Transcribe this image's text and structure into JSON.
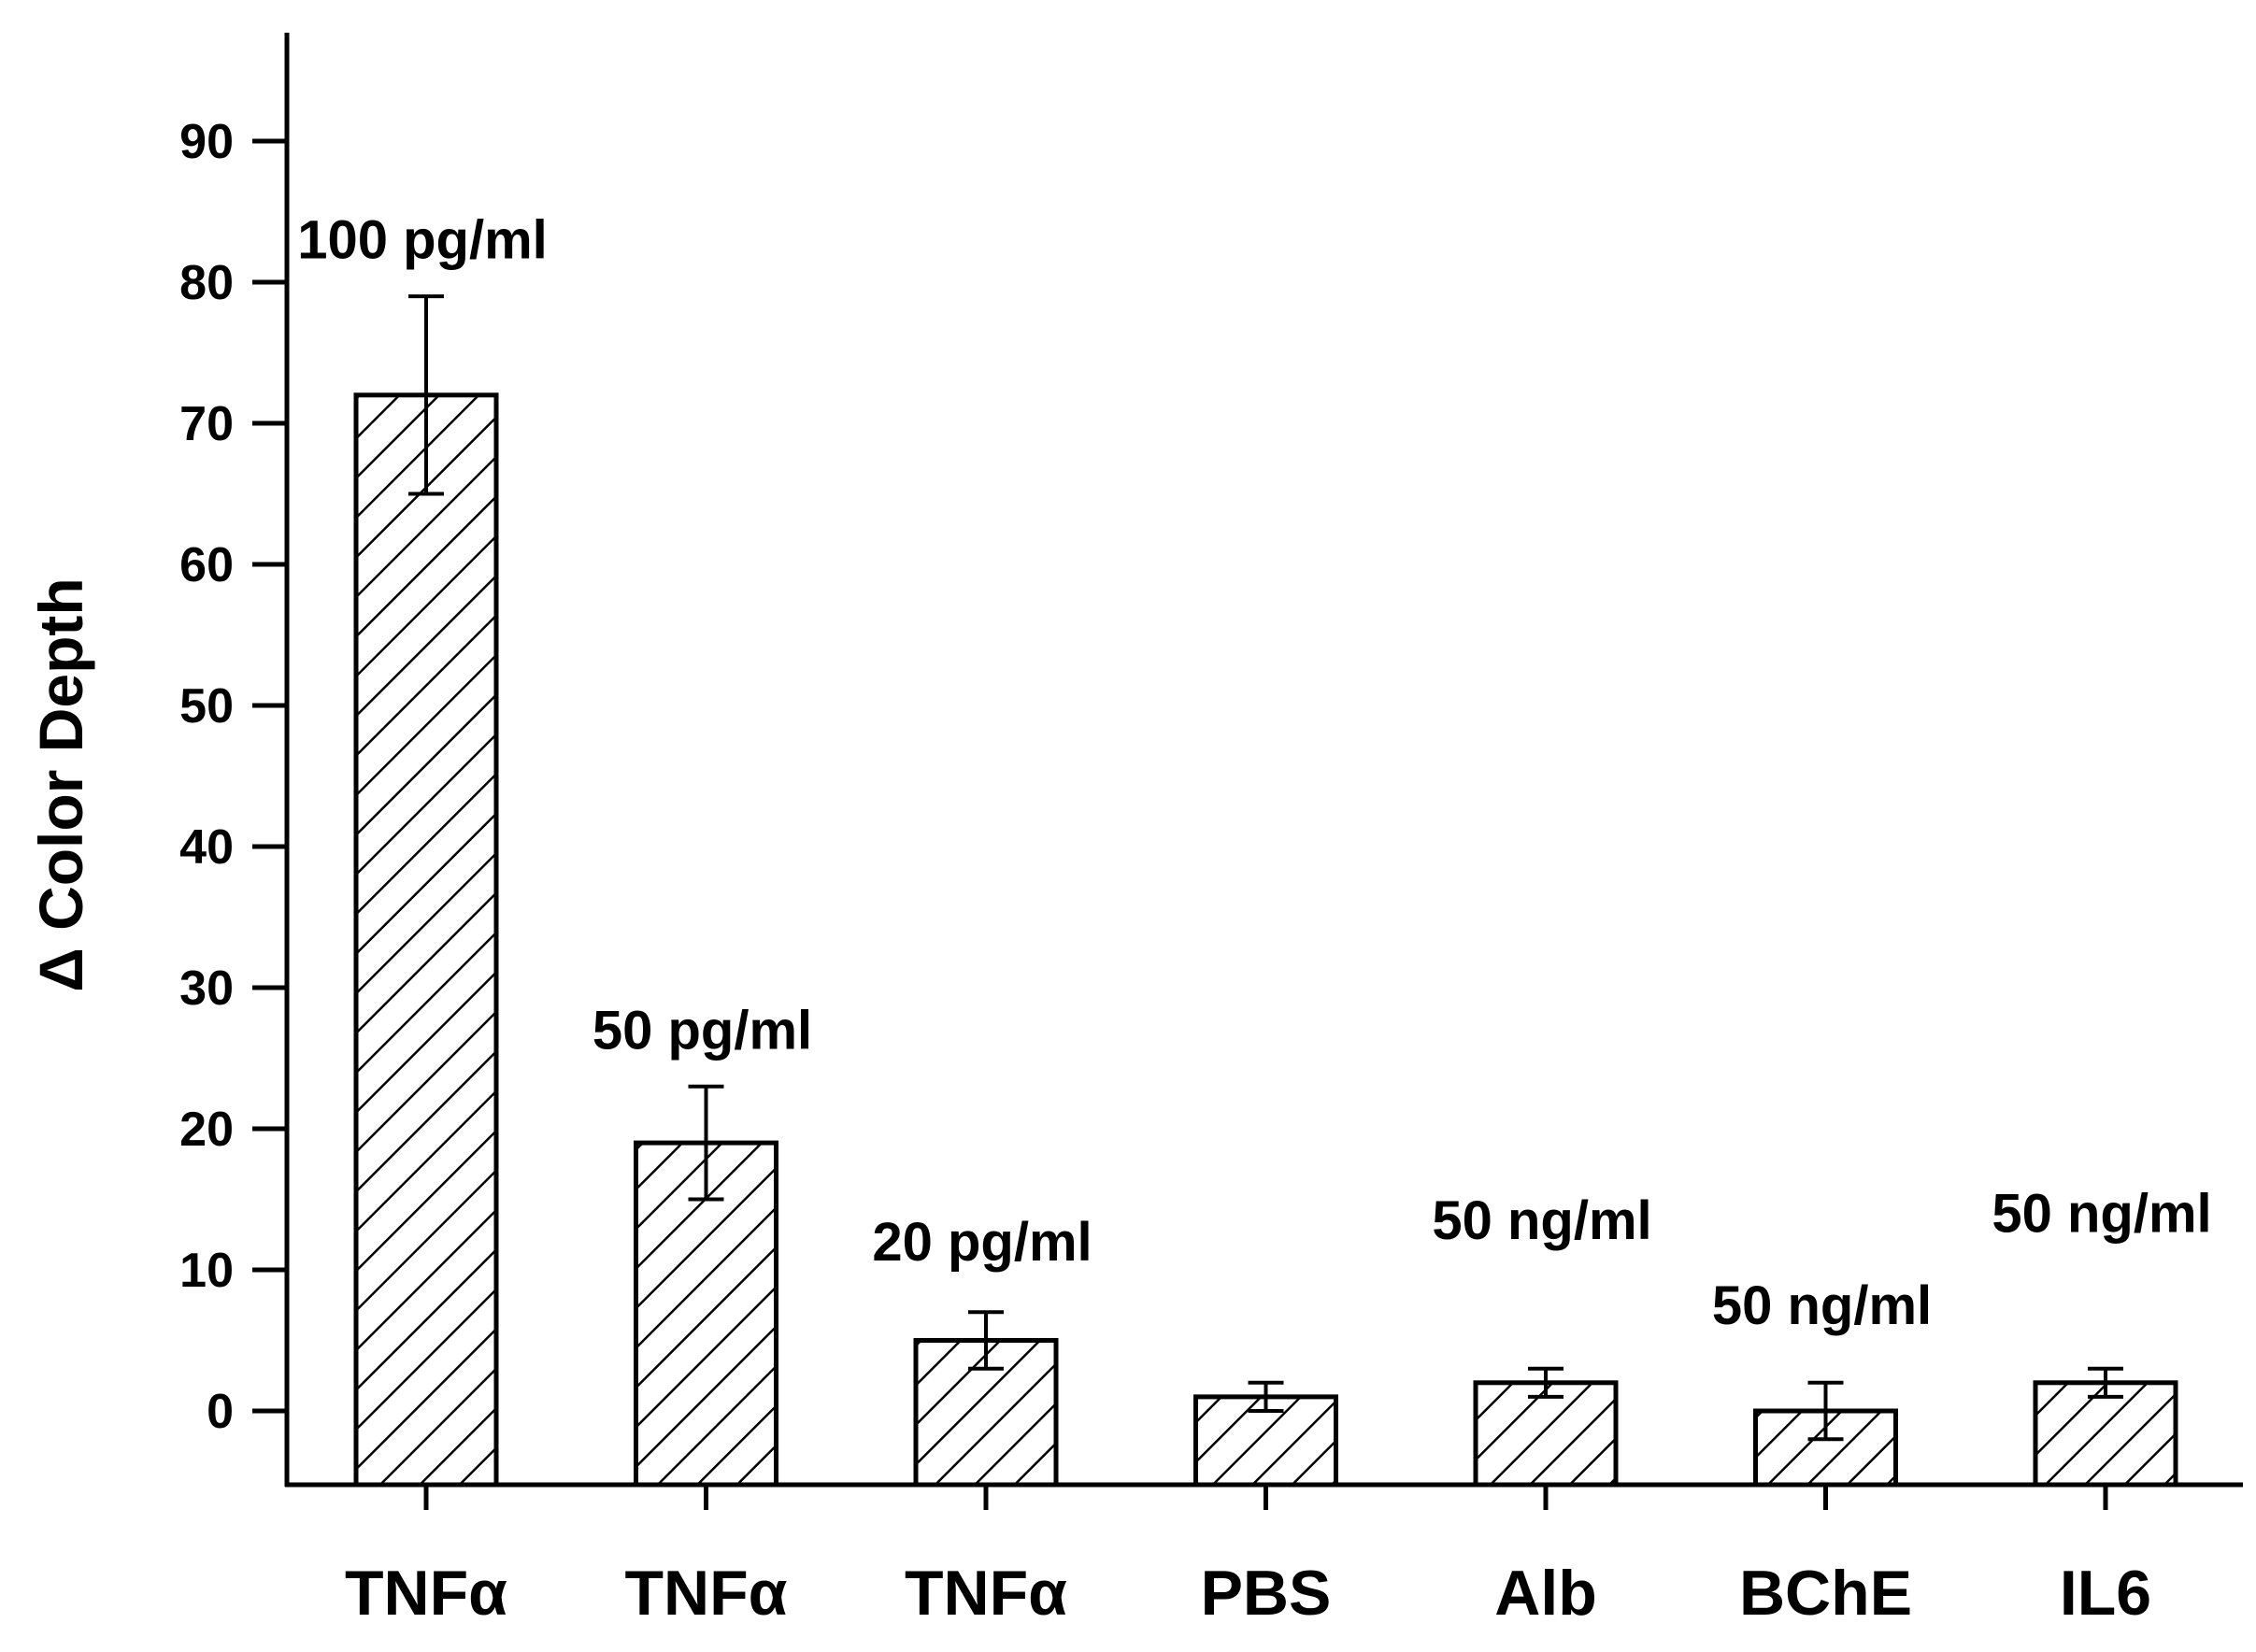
{
  "chart_data": {
    "type": "bar",
    "title": "",
    "xlabel": "",
    "ylabel": "Δ Color Depth",
    "ylim": [
      -5,
      98
    ],
    "yticks": [
      0,
      10,
      20,
      30,
      40,
      50,
      60,
      70,
      80,
      90
    ],
    "grid": false,
    "legend": "none",
    "fill_pattern": "diagonal-hatch",
    "categories": [
      "TNFα",
      "TNFα",
      "TNFα",
      "PBS",
      "Alb",
      "BChE",
      "IL6"
    ],
    "values": [
      72,
      19,
      5,
      1,
      2,
      0,
      2
    ],
    "errors": [
      7,
      4,
      2,
      1,
      1,
      2,
      1
    ],
    "annotations": [
      "100 pg/ml",
      "50 pg/ml",
      "20 pg/ml",
      "",
      "50 ng/ml",
      "50 ng/ml",
      "50 ng/ml"
    ],
    "annotation_values": [
      83,
      27,
      12,
      null,
      13.5,
      7.5,
      14
    ]
  }
}
